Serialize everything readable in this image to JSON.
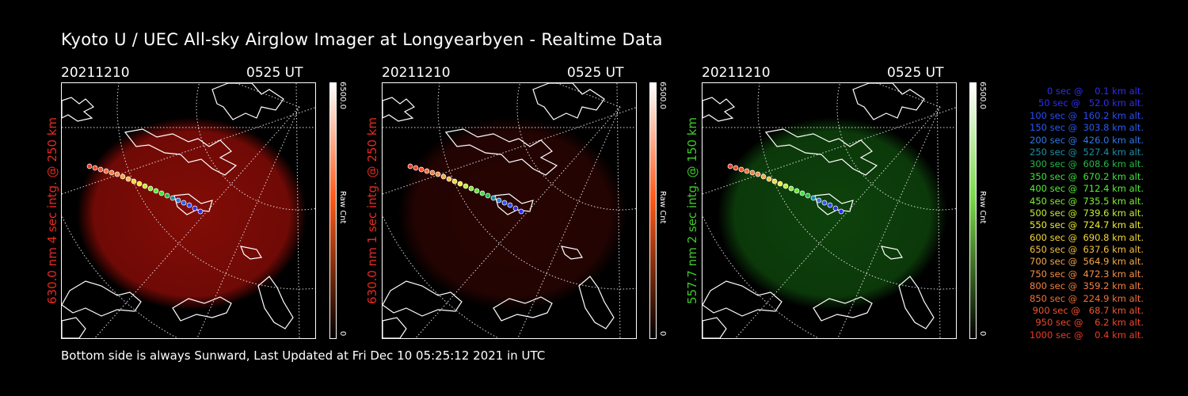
{
  "title": "Kyoto U / UEC All-sky Airglow Imager at Longyearbyen - Realtime Data",
  "footer": "Bottom side is always Sunward, Last Updated at Fri Dec 10 05:25:12 2021 in UTC",
  "panels": [
    {
      "date": "20211210",
      "time": "0525 UT",
      "ylabel": "630.0 nm 4 sec intg. @ 250 km",
      "ylabel_color": "#e8291e",
      "glow_color": "#9a0e08",
      "glow_opacity": 0.85,
      "cbar_color": "#ff5a1a",
      "cbar_max": "6500.0",
      "cbar_min": "0",
      "cbar_unit": "Raw Cnt"
    },
    {
      "date": "20211210",
      "time": "0525 UT",
      "ylabel": "630.0 nm 1 sec intg. @ 250 km",
      "ylabel_color": "#e8291e",
      "glow_color": "#5a0a06",
      "glow_opacity": 0.45,
      "cbar_color": "#ff5a1a",
      "cbar_max": "6500.0",
      "cbar_min": "0",
      "cbar_unit": "Raw Cnt"
    },
    {
      "date": "20211210",
      "time": "0525 UT",
      "ylabel": "557.7 nm 2 sec intg. @ 150 km",
      "ylabel_color": "#3ecc28",
      "glow_color": "#0f4a0d",
      "glow_opacity": 0.9,
      "cbar_color": "#7bd84a",
      "cbar_max": "6500.0",
      "cbar_min": "0",
      "cbar_unit": "Raw Cnt"
    }
  ],
  "legend": [
    {
      "text": "   0 sec @    0.1 km alt.",
      "color": "#2e2ef0"
    },
    {
      "text": "  50 sec @   52.0 km alt.",
      "color": "#2e2ef0"
    },
    {
      "text": " 100 sec @  160.2 km alt.",
      "color": "#2a4cf5"
    },
    {
      "text": " 150 sec @  303.8 km alt.",
      "color": "#2a5af5"
    },
    {
      "text": " 200 sec @  426.0 km alt.",
      "color": "#2e78e8"
    },
    {
      "text": " 250 sec @  527.4 km alt.",
      "color": "#1c8fa8"
    },
    {
      "text": " 300 sec @  608.6 km alt.",
      "color": "#24b84a"
    },
    {
      "text": " 350 sec @  670.2 km alt.",
      "color": "#3fe23f"
    },
    {
      "text": " 400 sec @  712.4 km alt.",
      "color": "#52f032"
    },
    {
      "text": " 450 sec @  735.5 km alt.",
      "color": "#7cf032"
    },
    {
      "text": " 500 sec @  739.6 km alt.",
      "color": "#c2ee30"
    },
    {
      "text": " 550 sec @  724.7 km alt.",
      "color": "#f0ee30"
    },
    {
      "text": " 600 sec @  690.8 km alt.",
      "color": "#f5d83a"
    },
    {
      "text": " 650 sec @  637.6 km alt.",
      "color": "#f5c040"
    },
    {
      "text": " 700 sec @  564.9 km alt.",
      "color": "#f5a845"
    },
    {
      "text": " 750 sec @  472.3 km alt.",
      "color": "#f59045"
    },
    {
      "text": " 800 sec @  359.2 km alt.",
      "color": "#f58040"
    },
    {
      "text": " 850 sec @  224.9 km alt.",
      "color": "#f57038"
    },
    {
      "text": " 900 sec @   68.7 km alt.",
      "color": "#f05530"
    },
    {
      "text": " 950 sec @    6.2 km alt.",
      "color": "#f04828"
    },
    {
      "text": "1000 sec @    0.4 km alt.",
      "color": "#f03a22"
    }
  ]
}
